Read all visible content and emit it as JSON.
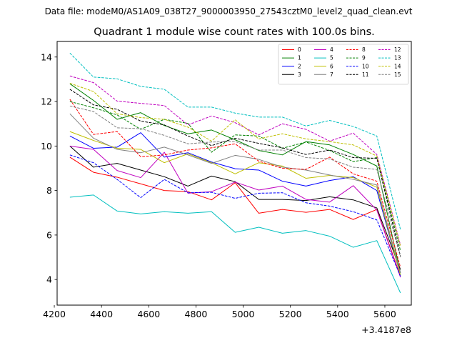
{
  "chart_data": {
    "type": "line",
    "suptitle": "Data file: modeM0/AS1A09_038T27_9000003950_27543cztM0_level2_quad_clean.evt",
    "title": "Quadrant 1 module wise count rates with 100.0s bins.",
    "xlabel": "",
    "ylabel": "",
    "x_offset_label": "+3.4187e8",
    "xlim": [
      4212,
      5712
    ],
    "ylim": [
      2.85,
      14.7
    ],
    "xticks": [
      4200,
      4400,
      4600,
      4800,
      5000,
      5200,
      5400,
      5600
    ],
    "yticks": [
      4,
      6,
      8,
      10,
      12,
      14
    ],
    "legend_position": "top-right",
    "x": [
      4266,
      4366,
      4466,
      4566,
      4666,
      4766,
      4866,
      4966,
      5066,
      5166,
      5266,
      5366,
      5466,
      5566,
      5666
    ],
    "series": [
      {
        "name": "0",
        "color": "#ff0000",
        "dash": "solid",
        "values": [
          9.5,
          8.82,
          8.6,
          8.3,
          8.0,
          7.95,
          7.58,
          8.35,
          6.98,
          7.15,
          7.02,
          7.15,
          6.7,
          7.15,
          4.15
        ]
      },
      {
        "name": "1",
        "color": "#008000",
        "dash": "solid",
        "values": [
          12.8,
          12.05,
          11.2,
          11.5,
          10.92,
          10.55,
          10.72,
          10.28,
          9.8,
          9.6,
          10.2,
          10.05,
          9.62,
          9.1,
          4.3
        ]
      },
      {
        "name": "2",
        "color": "#0000ff",
        "dash": "solid",
        "values": [
          10.45,
          9.9,
          9.95,
          10.6,
          9.5,
          9.7,
          9.28,
          8.98,
          8.92,
          8.42,
          8.2,
          8.45,
          8.62,
          8.0,
          4.2
        ]
      },
      {
        "name": "3",
        "color": "#000000",
        "dash": "solid",
        "values": [
          10.0,
          9.05,
          9.22,
          8.92,
          8.62,
          8.2,
          8.65,
          8.4,
          7.6,
          7.6,
          7.55,
          7.72,
          7.58,
          7.22,
          4.45
        ]
      },
      {
        "name": "4",
        "color": "#bf00bf",
        "dash": "solid",
        "values": [
          10.0,
          9.85,
          8.9,
          8.58,
          9.72,
          7.88,
          7.95,
          8.38,
          8.02,
          8.2,
          7.6,
          7.48,
          8.22,
          7.12,
          4.1
        ]
      },
      {
        "name": "5",
        "color": "#00bfbf",
        "dash": "solid",
        "values": [
          7.7,
          7.8,
          7.08,
          6.95,
          7.05,
          6.98,
          7.05,
          6.12,
          6.35,
          6.08,
          6.2,
          5.95,
          5.45,
          5.75,
          3.4
        ]
      },
      {
        "name": "6",
        "color": "#bfbf00",
        "dash": "solid",
        "values": [
          10.65,
          10.25,
          9.9,
          9.85,
          9.25,
          9.65,
          9.25,
          8.75,
          9.25,
          9.1,
          8.55,
          8.68,
          8.58,
          8.15,
          4.2
        ]
      },
      {
        "name": "7",
        "color": "#808080",
        "dash": "solid",
        "values": [
          11.45,
          10.35,
          9.85,
          9.7,
          9.95,
          9.6,
          9.22,
          9.58,
          9.4,
          9.05,
          8.92,
          8.7,
          8.5,
          8.25,
          4.3
        ]
      },
      {
        "name": "8",
        "color": "#ff0000",
        "dash": "dashed",
        "values": [
          12.1,
          10.52,
          10.65,
          9.52,
          9.6,
          9.82,
          9.92,
          10.1,
          9.32,
          9.0,
          8.95,
          9.5,
          8.75,
          8.42,
          4.55
        ]
      },
      {
        "name": "9",
        "color": "#008000",
        "dash": "dashed",
        "values": [
          12.0,
          11.72,
          11.4,
          10.75,
          11.2,
          11.02,
          9.72,
          10.5,
          10.45,
          9.9,
          10.18,
          9.8,
          9.3,
          9.48,
          5.3
        ]
      },
      {
        "name": "10",
        "color": "#0000ff",
        "dash": "dashed",
        "values": [
          9.6,
          9.25,
          8.5,
          7.68,
          8.5,
          7.9,
          7.92,
          7.65,
          7.88,
          7.9,
          7.45,
          7.3,
          7.05,
          6.68,
          4.15
        ]
      },
      {
        "name": "11",
        "color": "#000000",
        "dash": "dashed",
        "values": [
          12.55,
          11.85,
          11.65,
          11.12,
          10.95,
          10.45,
          10.02,
          10.35,
          10.12,
          9.92,
          9.62,
          9.82,
          9.48,
          9.45,
          5.05
        ]
      },
      {
        "name": "12",
        "color": "#bf00bf",
        "dash": "dashed",
        "values": [
          13.15,
          12.85,
          12.02,
          11.92,
          11.82,
          10.95,
          11.35,
          11.05,
          10.5,
          11.0,
          10.75,
          10.22,
          10.58,
          9.62,
          5.55
        ]
      },
      {
        "name": "13",
        "color": "#00bfbf",
        "dash": "dashed",
        "values": [
          14.18,
          13.1,
          13.02,
          12.68,
          12.55,
          11.75,
          11.75,
          11.48,
          11.3,
          11.3,
          10.9,
          11.15,
          10.88,
          10.45,
          6.25
        ]
      },
      {
        "name": "14",
        "color": "#bfbf00",
        "dash": "dashed",
        "values": [
          12.82,
          12.45,
          11.45,
          11.28,
          11.2,
          10.85,
          10.22,
          11.18,
          10.32,
          10.55,
          10.32,
          10.2,
          10.05,
          9.55,
          5.5
        ]
      },
      {
        "name": "15",
        "color": "#808080",
        "dash": "dashed",
        "values": [
          11.8,
          11.55,
          10.82,
          10.78,
          10.48,
          10.1,
          10.18,
          10.2,
          9.82,
          9.82,
          9.48,
          9.42,
          9.05,
          8.95,
          5.0
        ]
      }
    ]
  }
}
